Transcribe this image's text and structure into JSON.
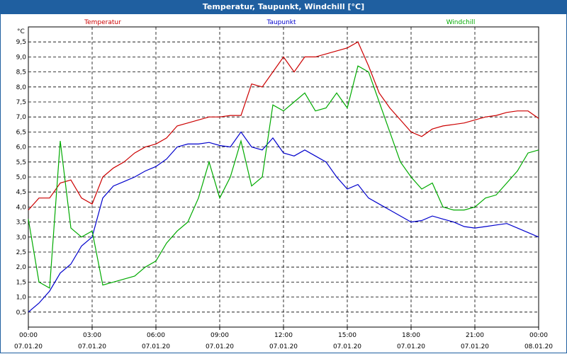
{
  "window": {
    "title": "Temperatur, Taupunkt, Windchill [°C]"
  },
  "chart_data": {
    "type": "line",
    "title": "Temperatur, Taupunkt, Windchill [°C]",
    "ylabel": "°C",
    "ylim": [
      0,
      10
    ],
    "yticks": [
      "0,5",
      "1,0",
      "1,5",
      "2,0",
      "2,5",
      "3,0",
      "3,5",
      "4,0",
      "4,5",
      "5,0",
      "5,5",
      "6,0",
      "6,5",
      "7,0",
      "7,5",
      "8,0",
      "8,5",
      "9,0",
      "9,5"
    ],
    "xticks": [
      {
        "time": "00:00",
        "date": "07.01.20"
      },
      {
        "time": "03:00",
        "date": "07.01.20"
      },
      {
        "time": "06:00",
        "date": "07.01.20"
      },
      {
        "time": "09:00",
        "date": "07.01.20"
      },
      {
        "time": "12:00",
        "date": "07.01.20"
      },
      {
        "time": "15:00",
        "date": "07.01.20"
      },
      {
        "time": "18:00",
        "date": "07.01.20"
      },
      {
        "time": "21:00",
        "date": "07.01.20"
      },
      {
        "time": "00:00",
        "date": "08.01.20"
      }
    ],
    "x_hours": [
      0,
      0.5,
      1,
      1.5,
      2,
      2.5,
      3,
      3.5,
      4,
      4.5,
      5,
      5.5,
      6,
      6.5,
      7,
      7.5,
      8,
      8.5,
      9,
      9.5,
      10,
      10.5,
      11,
      11.5,
      12,
      12.5,
      13,
      13.5,
      14,
      14.5,
      15,
      15.5,
      16,
      16.5,
      17,
      17.5,
      18,
      18.5,
      19,
      19.5,
      20,
      20.5,
      21,
      21.5,
      22,
      22.5,
      23,
      23.5,
      24
    ],
    "grid": true,
    "legend_position": "top",
    "series": [
      {
        "name": "Temperatur",
        "color": "#cc0000",
        "values": [
          3.9,
          4.3,
          4.3,
          4.8,
          4.9,
          4.3,
          4.1,
          5.0,
          5.3,
          5.5,
          5.8,
          6.0,
          6.1,
          6.3,
          6.7,
          6.8,
          6.9,
          7.0,
          7.0,
          7.05,
          7.05,
          8.1,
          8.0,
          8.5,
          9.0,
          8.5,
          9.0,
          9.0,
          9.1,
          9.2,
          9.3,
          9.5,
          8.7,
          7.8,
          7.3,
          6.9,
          6.5,
          6.35,
          6.6,
          6.7,
          6.75,
          6.8,
          6.9,
          7.0,
          7.05,
          7.15,
          7.2,
          7.2,
          6.95
        ]
      },
      {
        "name": "Taupunkt",
        "color": "#0000cc",
        "values": [
          0.5,
          0.8,
          1.2,
          1.8,
          2.1,
          2.7,
          3.0,
          4.3,
          4.7,
          4.85,
          5.0,
          5.2,
          5.35,
          5.6,
          6.0,
          6.1,
          6.1,
          6.15,
          6.05,
          6.0,
          6.5,
          6.0,
          5.9,
          6.3,
          5.8,
          5.7,
          5.9,
          5.7,
          5.5,
          5.0,
          4.6,
          4.75,
          4.3,
          4.1,
          3.9,
          3.7,
          3.5,
          3.55,
          3.7,
          3.6,
          3.5,
          3.35,
          3.3,
          3.35,
          3.4,
          3.45,
          3.3,
          3.15,
          3.0
        ]
      },
      {
        "name": "Windchill",
        "color": "#00aa00",
        "values": [
          3.6,
          1.5,
          1.3,
          6.2,
          3.3,
          3.0,
          3.2,
          1.4,
          1.5,
          1.6,
          1.7,
          2.0,
          2.2,
          2.8,
          3.2,
          3.5,
          4.3,
          5.5,
          4.3,
          5.0,
          6.2,
          4.7,
          5.0,
          7.4,
          7.2,
          7.5,
          7.8,
          7.2,
          7.3,
          7.8,
          7.3,
          8.7,
          8.5,
          7.5,
          6.5,
          5.5,
          5.0,
          4.6,
          4.8,
          4.0,
          3.9,
          3.9,
          4.0,
          4.3,
          4.4,
          4.8,
          5.2,
          5.8,
          5.9
        ]
      }
    ]
  }
}
